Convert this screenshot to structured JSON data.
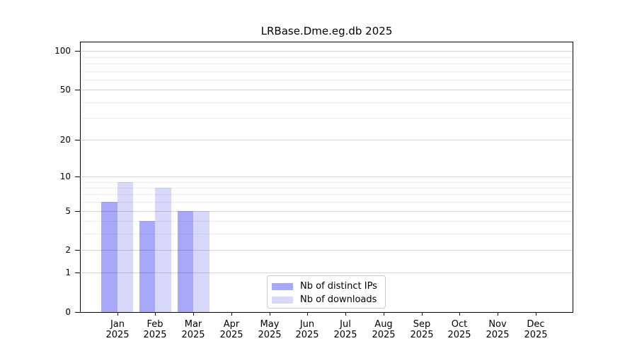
{
  "chart_data": {
    "type": "bar",
    "title": "LRBase.Dme.eg.db 2025",
    "categories": [
      "Jan",
      "Feb",
      "Mar",
      "Apr",
      "May",
      "Jun",
      "Jul",
      "Aug",
      "Sep",
      "Oct",
      "Nov",
      "Dec"
    ],
    "year_label": "2025",
    "series": [
      {
        "name": "Nb of distinct IPs",
        "color": "#a8a8fa",
        "values": [
          6,
          4,
          5,
          0,
          0,
          0,
          0,
          0,
          0,
          0,
          0,
          0
        ]
      },
      {
        "name": "Nb of downloads",
        "color": "#d8d8fa",
        "values": [
          9,
          8,
          5,
          0,
          0,
          0,
          0,
          0,
          0,
          0,
          0,
          0
        ]
      }
    ],
    "xlabel": "",
    "ylabel": "",
    "y_axis": {
      "scale": "log1p",
      "ticks": [
        0,
        1,
        2,
        5,
        10,
        20,
        50,
        100
      ],
      "minor_gridlines": [
        3,
        4,
        6,
        7,
        8,
        9,
        30,
        40,
        60,
        70,
        80,
        90
      ],
      "ylim": [
        0,
        117
      ]
    },
    "grid": true,
    "legend_position": "bottom-center"
  }
}
